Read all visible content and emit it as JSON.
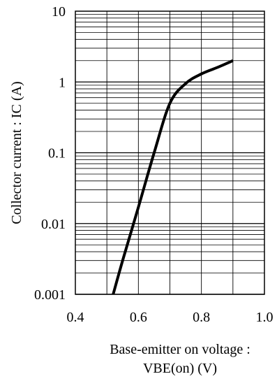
{
  "chart_data": {
    "type": "line",
    "title": "",
    "xlabel_lines": [
      "Base-emitter on voltage :",
      "VBE(on) (V)"
    ],
    "ylabel": "Collector current : IC (A)",
    "xlim": [
      0.4,
      1.0
    ],
    "ylim": [
      0.001,
      10
    ],
    "yscale": "log",
    "xscale": "linear",
    "grid": true,
    "legend": "none",
    "x_ticks": [
      0.4,
      0.6,
      0.8,
      1.0
    ],
    "x_tick_labels": [
      "0.4",
      "0.6",
      "0.8",
      "1.0"
    ],
    "y_ticks": [
      0.001,
      0.01,
      0.1,
      1,
      10
    ],
    "y_tick_labels": [
      "0.001",
      "0.01",
      "0.1",
      "1",
      "10"
    ],
    "series": [
      {
        "x": [
          0.52,
          0.55,
          0.6,
          0.65,
          0.7,
          0.75,
          0.8,
          0.85,
          0.9
        ],
        "y": [
          0.001,
          0.003,
          0.017,
          0.1,
          0.5,
          0.95,
          1.3,
          1.6,
          2.0
        ]
      }
    ],
    "colors": {
      "line": "#000000",
      "grid": "#000000",
      "background": "#ffffff"
    }
  }
}
